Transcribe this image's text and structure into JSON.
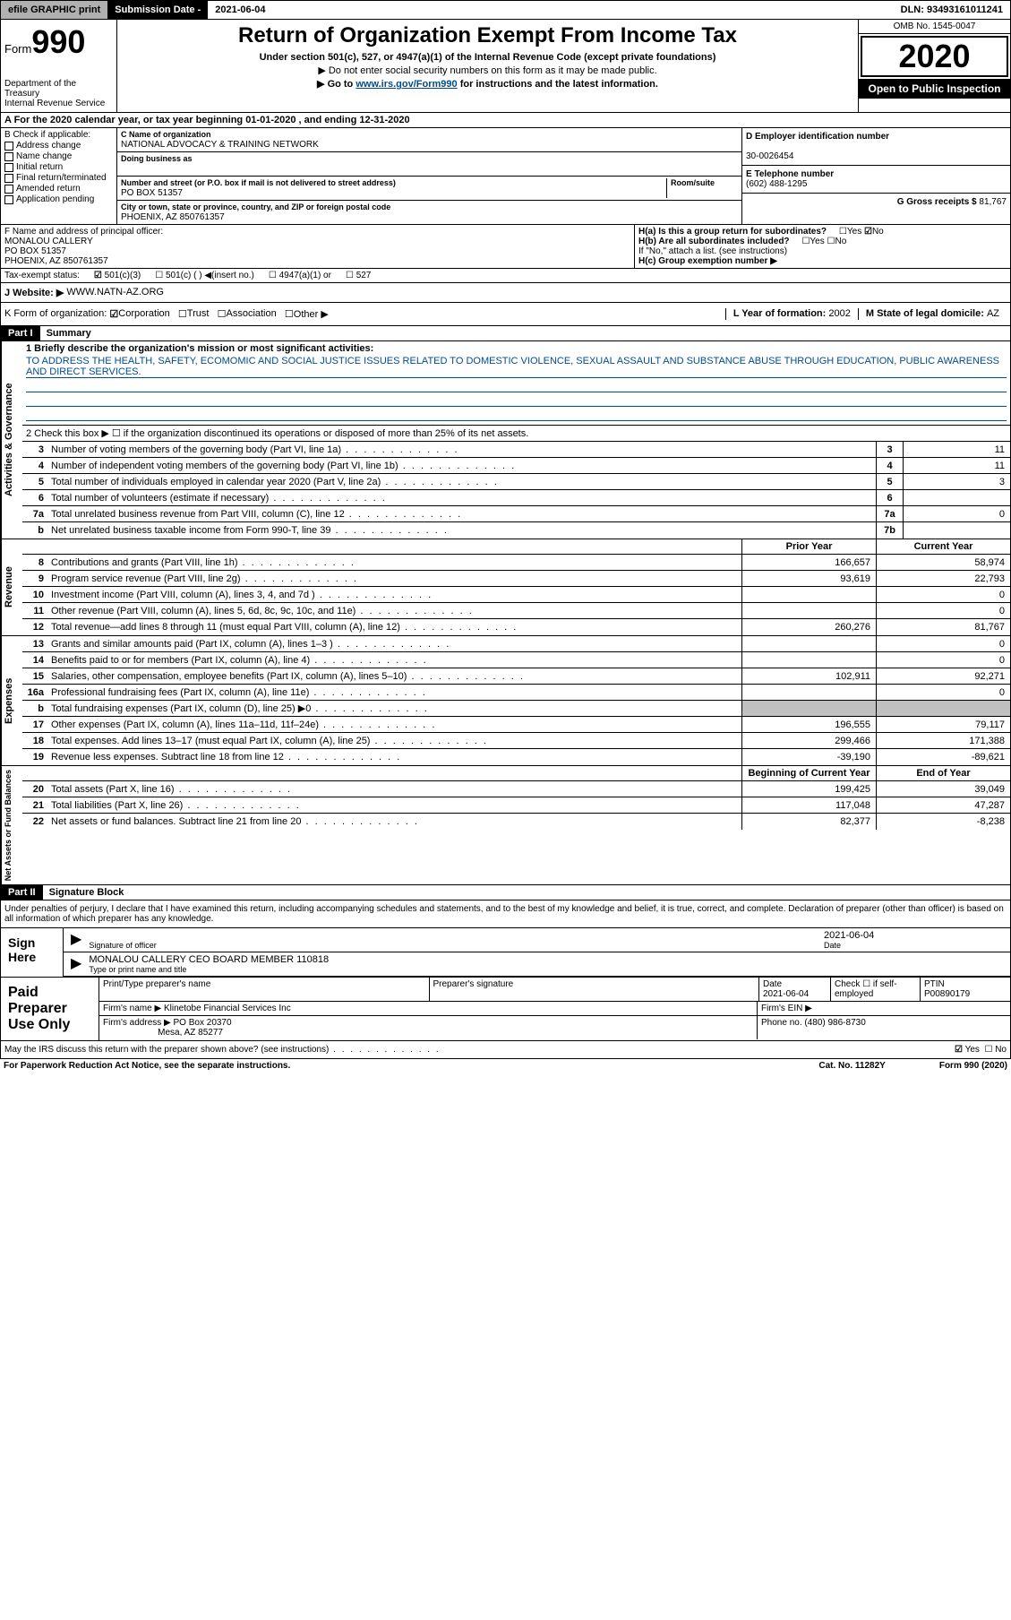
{
  "topbar": {
    "efile": "efile GRAPHIC print",
    "subdate_lbl": "Submission Date - ",
    "subdate": "2021-06-04",
    "dln_lbl": "DLN: ",
    "dln": "93493161011241"
  },
  "header": {
    "form_word": "Form",
    "form_num": "990",
    "dept": "Department of the Treasury\nInternal Revenue Service",
    "title": "Return of Organization Exempt From Income Tax",
    "subtitle": "Under section 501(c), 527, or 4947(a)(1) of the Internal Revenue Code (except private foundations)",
    "note1": "▶ Do not enter social security numbers on this form as it may be made public.",
    "note2_a": "▶ Go to ",
    "note2_link": "www.irs.gov/Form990",
    "note2_b": " for instructions and the latest information.",
    "omb": "OMB No. 1545-0047",
    "year": "2020",
    "pub": "Open to Public Inspection"
  },
  "secA": "A For the 2020 calendar year, or tax year beginning 01-01-2020    , and ending 12-31-2020",
  "colB": {
    "title": "B Check if applicable:",
    "items": [
      "Address change",
      "Name change",
      "Initial return",
      "Final return/terminated",
      "Amended return",
      "Application pending"
    ]
  },
  "colC": {
    "name_lbl": "C Name of organization",
    "name": "NATIONAL ADVOCACY & TRAINING NETWORK",
    "dba_lbl": "Doing business as",
    "dba": "",
    "street_lbl": "Number and street (or P.O. box if mail is not delivered to street address)",
    "room_lbl": "Room/suite",
    "street": "PO BOX 51357",
    "city_lbl": "City or town, state or province, country, and ZIP or foreign postal code",
    "city": "PHOENIX, AZ  850761357"
  },
  "colD": {
    "ein_lbl": "D Employer identification number",
    "ein": "30-0026454",
    "tel_lbl": "E Telephone number",
    "tel": "(602) 488-1295",
    "gross_lbl": "G Gross receipts $ ",
    "gross": "81,767"
  },
  "rowF": {
    "f_lbl": "F  Name and address of principal officer:",
    "f_name": "MONALOU CALLERY",
    "f_addr1": "PO BOX 51357",
    "f_addr2": "PHOENIX, AZ  850761357",
    "ha": "H(a)  Is this a group return for subordinates?",
    "ha_yes": "Yes",
    "ha_no": "No",
    "hb": "H(b)  Are all subordinates included?",
    "hb_note": "If \"No,\" attach a list. (see instructions)",
    "hc": "H(c)  Group exemption number ▶"
  },
  "rowI": {
    "lbl": "Tax-exempt status:",
    "o1": "501(c)(3)",
    "o2": "501(c) (   ) ◀(insert no.)",
    "o3": "4947(a)(1) or",
    "o4": "527"
  },
  "rowJ": {
    "lbl": "J   Website: ▶",
    "val": "WWW.NATN-AZ.ORG"
  },
  "rowK": {
    "lbl": "K Form of organization:",
    "o1": "Corporation",
    "o2": "Trust",
    "o3": "Association",
    "o4": "Other ▶",
    "L_lbl": "L Year of formation: ",
    "L": "2002",
    "M_lbl": "M State of legal domicile: ",
    "M": "AZ"
  },
  "part1": {
    "hdr": "Part I",
    "title": "Summary",
    "q1_lbl": "1   Briefly describe the organization's mission or most significant activities:",
    "q1": "TO ADDRESS THE HEALTH, SAFETY, ECOMOMIC AND SOCIAL JUSTICE ISSUES RELATED TO DOMESTIC VIOLENCE, SEXUAL ASSAULT AND SUBSTANCE ABUSE THROUGH EDUCATION, PUBLIC AWARENESS AND DIRECT SERVICES.",
    "q2": "2   Check this box ▶ ☐  if the organization discontinued its operations or disposed of more than 25% of its net assets."
  },
  "gov_rows": [
    {
      "n": "3",
      "t": "Number of voting members of the governing body (Part VI, line 1a)",
      "b": "3",
      "v": "11"
    },
    {
      "n": "4",
      "t": "Number of independent voting members of the governing body (Part VI, line 1b)",
      "b": "4",
      "v": "11"
    },
    {
      "n": "5",
      "t": "Total number of individuals employed in calendar year 2020 (Part V, line 2a)",
      "b": "5",
      "v": "3"
    },
    {
      "n": "6",
      "t": "Total number of volunteers (estimate if necessary)",
      "b": "6",
      "v": ""
    },
    {
      "n": "7a",
      "t": "Total unrelated business revenue from Part VIII, column (C), line 12",
      "b": "7a",
      "v": "0"
    },
    {
      "n": "b",
      "t": "Net unrelated business taxable income from Form 990-T, line 39",
      "b": "7b",
      "v": ""
    }
  ],
  "rev_hdr": {
    "py": "Prior Year",
    "cy": "Current Year"
  },
  "rev_rows": [
    {
      "n": "8",
      "t": "Contributions and grants (Part VIII, line 1h)",
      "py": "166,657",
      "cy": "58,974"
    },
    {
      "n": "9",
      "t": "Program service revenue (Part VIII, line 2g)",
      "py": "93,619",
      "cy": "22,793"
    },
    {
      "n": "10",
      "t": "Investment income (Part VIII, column (A), lines 3, 4, and 7d )",
      "py": "",
      "cy": "0"
    },
    {
      "n": "11",
      "t": "Other revenue (Part VIII, column (A), lines 5, 6d, 8c, 9c, 10c, and 11e)",
      "py": "",
      "cy": "0"
    },
    {
      "n": "12",
      "t": "Total revenue—add lines 8 through 11 (must equal Part VIII, column (A), line 12)",
      "py": "260,276",
      "cy": "81,767"
    }
  ],
  "exp_rows": [
    {
      "n": "13",
      "t": "Grants and similar amounts paid (Part IX, column (A), lines 1–3 )",
      "py": "",
      "cy": "0"
    },
    {
      "n": "14",
      "t": "Benefits paid to or for members (Part IX, column (A), line 4)",
      "py": "",
      "cy": "0"
    },
    {
      "n": "15",
      "t": "Salaries, other compensation, employee benefits (Part IX, column (A), lines 5–10)",
      "py": "102,911",
      "cy": "92,271"
    },
    {
      "n": "16a",
      "t": "Professional fundraising fees (Part IX, column (A), line 11e)",
      "py": "",
      "cy": "0"
    },
    {
      "n": "b",
      "t": "Total fundraising expenses (Part IX, column (D), line 25) ▶0",
      "py": "gray",
      "cy": "gray"
    },
    {
      "n": "17",
      "t": "Other expenses (Part IX, column (A), lines 11a–11d, 11f–24e)",
      "py": "196,555",
      "cy": "79,117"
    },
    {
      "n": "18",
      "t": "Total expenses. Add lines 13–17 (must equal Part IX, column (A), line 25)",
      "py": "299,466",
      "cy": "171,388"
    },
    {
      "n": "19",
      "t": "Revenue less expenses. Subtract line 18 from line 12",
      "py": "-39,190",
      "cy": "-89,621"
    }
  ],
  "net_hdr": {
    "bcy": "Beginning of Current Year",
    "eoy": "End of Year"
  },
  "net_rows": [
    {
      "n": "20",
      "t": "Total assets (Part X, line 16)",
      "py": "199,425",
      "cy": "39,049"
    },
    {
      "n": "21",
      "t": "Total liabilities (Part X, line 26)",
      "py": "117,048",
      "cy": "47,287"
    },
    {
      "n": "22",
      "t": "Net assets or fund balances. Subtract line 21 from line 20",
      "py": "82,377",
      "cy": "-8,238"
    }
  ],
  "vtabs": {
    "gov": "Activities & Governance",
    "rev": "Revenue",
    "exp": "Expenses",
    "net": "Net Assets or Fund Balances"
  },
  "part2": {
    "hdr": "Part II",
    "title": "Signature Block"
  },
  "sig": {
    "decl": "Under penalties of perjury, I declare that I have examined this return, including accompanying schedules and statements, and to the best of my knowledge and belief, it is true, correct, and complete. Declaration of preparer (other than officer) is based on all information of which preparer has any knowledge.",
    "sign_here": "Sign Here",
    "sig_officer_lbl": "Signature of officer",
    "date_lbl": "Date",
    "date": "2021-06-04",
    "name": "MONALOU CALLERY CEO BOARD MEMBER 110818",
    "name_lbl": "Type or print name and title"
  },
  "prep": {
    "title": "Paid Preparer Use Only",
    "c1": "Print/Type preparer's name",
    "c2": "Preparer's signature",
    "c3_lbl": "Date",
    "c3": "2021-06-04",
    "c4": "Check ☐ if self-employed",
    "c5_lbl": "PTIN",
    "c5": "P00890179",
    "firm_lbl": "Firm's name    ▶",
    "firm": "Klinetobe Financial Services Inc",
    "ein_lbl": "Firm's EIN ▶",
    "addr_lbl": "Firm's address ▶",
    "addr1": "PO Box 20370",
    "addr2": "Mesa, AZ  85277",
    "phone_lbl": "Phone no. ",
    "phone": "(480) 986-8730"
  },
  "footer": {
    "q": "May the IRS discuss this return with the preparer shown above? (see instructions)",
    "yes": "Yes",
    "no": "No",
    "pra": "For Paperwork Reduction Act Notice, see the separate instructions.",
    "cat": "Cat. No. 11282Y",
    "form": "Form 990 (2020)"
  }
}
